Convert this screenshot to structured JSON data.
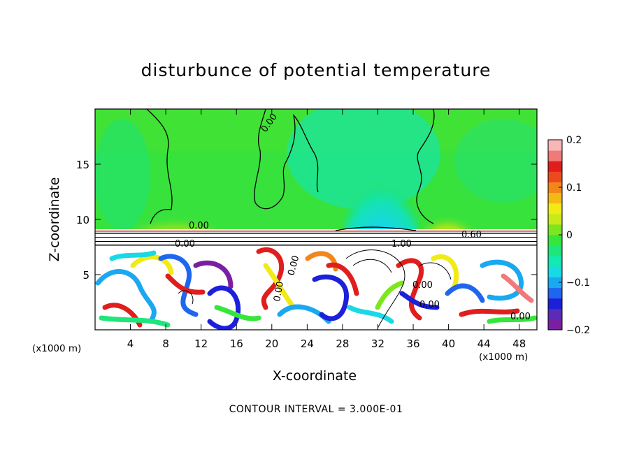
{
  "chart_data": {
    "type": "heatmap",
    "title": "disturbunce of potential temperature",
    "xlabel": "X-coordinate",
    "ylabel": "Z-coordinate",
    "x_unit": "(x1000 m)",
    "x_unit_right": "(x1000 m)",
    "xlim": [
      0,
      50
    ],
    "ylim": [
      0,
      20
    ],
    "x_ticks": [
      4,
      8,
      12,
      16,
      20,
      24,
      28,
      32,
      36,
      40,
      44,
      48
    ],
    "y_ticks": [
      5,
      10,
      15
    ],
    "colorbar": {
      "min": -0.2,
      "max": 0.2,
      "tick_labels": [
        "0.2",
        "0.1",
        "0",
        "−0.1",
        "−0.2"
      ],
      "tick_values": [
        0.2,
        0.1,
        0,
        -0.1,
        -0.2
      ],
      "colors": [
        "#7a1fa2",
        "#5b2bb5",
        "#1c20d8",
        "#1f66ee",
        "#1aa8f0",
        "#19d9e6",
        "#12e9b3",
        "#1ee67a",
        "#36e63b",
        "#7ce61e",
        "#c9ea1a",
        "#f2ea14",
        "#f5b914",
        "#f2861a",
        "#ec4a1e",
        "#e01e1e",
        "#f07a7a",
        "#f9b6b6"
      ]
    },
    "contour_labels": [
      "0.00",
      "0.00",
      "0.00",
      "0.60",
      "1.00",
      "0.00",
      "0.00",
      "0.00",
      "0.00",
      "0.00"
    ],
    "footer": "CONTOUR INTERVAL = 3.000E-01"
  }
}
